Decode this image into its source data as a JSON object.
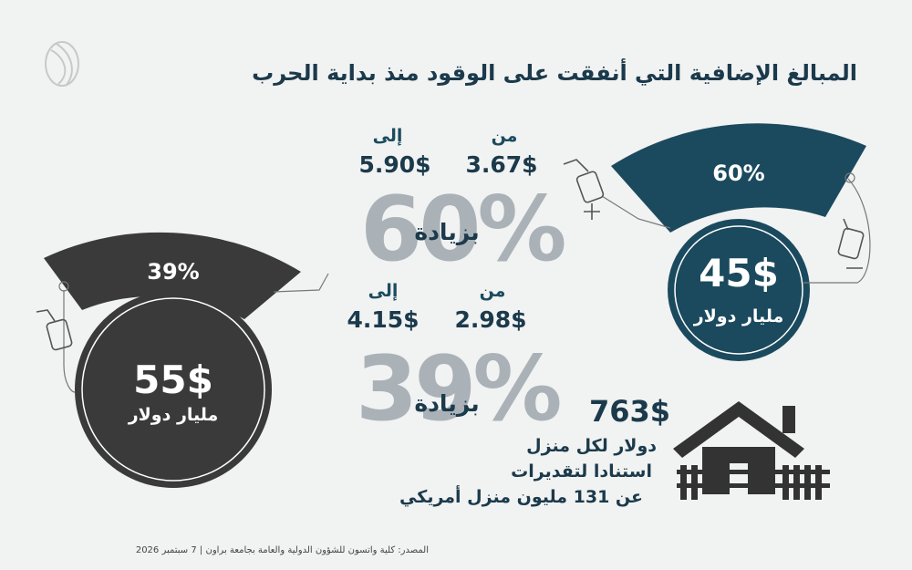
{
  "title": "المبالغ الإضافية التي أنفقت على الوقود منذ بداية الحرب",
  "blue": {
    "percent_label": "60%",
    "amount": "45$",
    "unit": "مليار دولار",
    "from_label": "من",
    "to_label": "إلى",
    "from_value": "3.67$",
    "to_value": "5.90$",
    "big_percent": "60%",
    "increase_label": "بزيادة",
    "color": "#1b4a5e"
  },
  "dark": {
    "percent_label": "39%",
    "amount": "55$",
    "unit": "مليار دولار",
    "from_label": "من",
    "to_label": "إلى",
    "from_value": "2.98$",
    "to_value": "4.15$",
    "big_percent": "39%",
    "increase_label": "بزيادة",
    "color": "#3a3a3a"
  },
  "household": {
    "amount": "763$",
    "line1": "دولار لكل منزل",
    "line2": "استنادا لتقديرات",
    "line3": "عن 131 مليون منزل أمريكي"
  },
  "footer": "المصدر: كلية واتسون للشؤون الدولية والعامة بجامعة براون | 7 سبتمبر 2026",
  "icons": [
    "logo-icon",
    "fuel-nozzle-icon",
    "house-icon"
  ]
}
